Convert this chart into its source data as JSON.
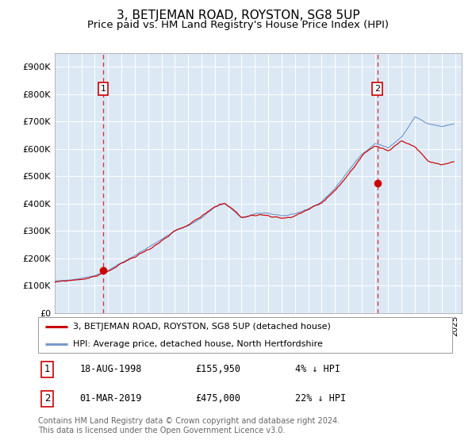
{
  "title": "3, BETJEMAN ROAD, ROYSTON, SG8 5UP",
  "subtitle": "Price paid vs. HM Land Registry's House Price Index (HPI)",
  "title_fontsize": 11,
  "subtitle_fontsize": 9.5,
  "background_color": "#ffffff",
  "plot_bg_color": "#dce9f5",
  "hpi_color": "#7799cc",
  "price_color": "#cc0000",
  "ylim": [
    0,
    950000
  ],
  "yticks": [
    0,
    100000,
    200000,
    300000,
    400000,
    500000,
    600000,
    700000,
    800000,
    900000
  ],
  "ytick_labels": [
    "£0",
    "£100K",
    "£200K",
    "£300K",
    "£400K",
    "£500K",
    "£600K",
    "£700K",
    "£800K",
    "£900K"
  ],
  "sale1_date": 1998.63,
  "sale1_price": 155950,
  "sale2_date": 2019.17,
  "sale2_price": 475000,
  "legend_entries": [
    {
      "label": "3, BETJEMAN ROAD, ROYSTON, SG8 5UP (detached house)",
      "color": "#cc0000"
    },
    {
      "label": "HPI: Average price, detached house, North Hertfordshire",
      "color": "#7799cc"
    }
  ],
  "table_rows": [
    {
      "num": "1",
      "date": "18-AUG-1998",
      "price": "£155,950",
      "note": "4% ↓ HPI"
    },
    {
      "num": "2",
      "date": "01-MAR-2019",
      "price": "£475,000",
      "note": "22% ↓ HPI"
    }
  ],
  "footer": "Contains HM Land Registry data © Crown copyright and database right 2024.\nThis data is licensed under the Open Government Licence v3.0.",
  "grid_color": "#ffffff",
  "vline_color": "#cc0000"
}
